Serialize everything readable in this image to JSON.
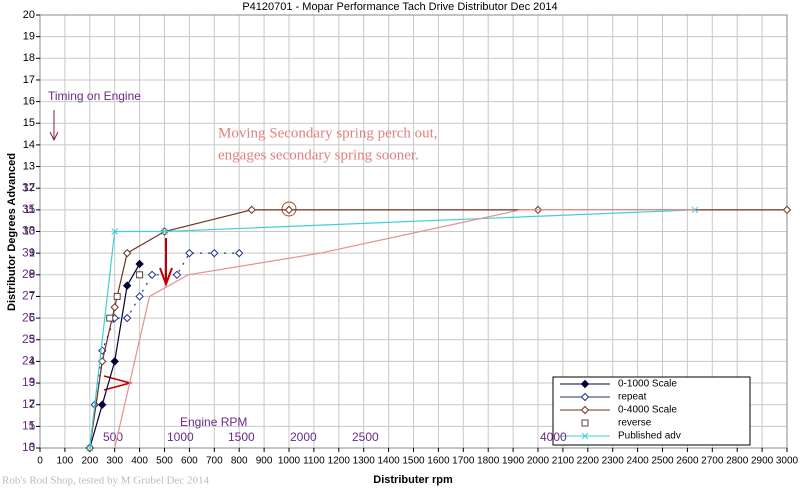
{
  "chart_data": {
    "type": "line",
    "title": "P4120701 - Mopar Performance Tach Drive Distributor Dec 2014",
    "xlabel": "Distributer rpm",
    "ylabel": "Distributor Degrees Advanced",
    "xlim": [
      0,
      3000
    ],
    "ylim": [
      0,
      20
    ],
    "xticks": [
      0,
      100,
      200,
      300,
      400,
      500,
      600,
      700,
      800,
      900,
      1000,
      1100,
      1200,
      1300,
      1400,
      1500,
      1600,
      1700,
      1800,
      1900,
      2000,
      2100,
      2200,
      2300,
      2400,
      2500,
      2600,
      2700,
      2800,
      2900,
      3000
    ],
    "yticks": [
      0,
      1,
      2,
      3,
      4,
      5,
      6,
      7,
      8,
      9,
      10,
      11,
      12,
      13,
      14,
      15,
      16,
      17,
      18,
      19,
      20
    ],
    "grid": true,
    "legend": "lower right",
    "series": [
      {
        "name": "0-1000 Scale",
        "color": "#000033",
        "marker": "diamond-filled",
        "x": [
          200,
          250,
          300,
          350,
          400
        ],
        "values": [
          0,
          2,
          4,
          7.5,
          8.5
        ]
      },
      {
        "name": "repeat",
        "color": "#203080",
        "marker": "diamond",
        "dash": true,
        "x": [
          200,
          220,
          250,
          300,
          350,
          400,
          450,
          550,
          600,
          700,
          800
        ],
        "values": [
          0,
          2,
          4.5,
          6,
          6,
          7,
          8,
          8,
          9,
          9,
          9
        ]
      },
      {
        "name": "0-4000 Scale",
        "color": "#703020",
        "marker": "diamond",
        "x": [
          200,
          250,
          300,
          350,
          500,
          850,
          1000,
          2000,
          3000
        ],
        "values": [
          0,
          4,
          6.5,
          9,
          10,
          11,
          11,
          11,
          11
        ]
      },
      {
        "name": "reverse",
        "color": "#604040",
        "marker": "square",
        "line": false,
        "x": [
          280,
          310,
          400
        ],
        "values": [
          6,
          7,
          8
        ]
      },
      {
        "name": "Published adv",
        "color": "#40d0d8",
        "marker": "x",
        "x": [
          200,
          300,
          500,
          2630
        ],
        "values": [
          0,
          10,
          10,
          11
        ]
      },
      {
        "color": "#e89090",
        "marker": "none",
        "x": [
          300,
          440,
          595,
          1125,
          1930,
          2630
        ],
        "values": [
          0,
          7,
          8,
          9,
          11,
          11
        ]
      }
    ],
    "secondary_y_labels": [
      {
        "value": 0,
        "label": "13"
      },
      {
        "value": 1,
        "label": "15"
      },
      {
        "value": 2,
        "label": "17"
      },
      {
        "value": 3,
        "label": "19"
      },
      {
        "value": 4,
        "label": "21"
      },
      {
        "value": 5,
        "label": "23"
      },
      {
        "value": 6,
        "label": "25"
      },
      {
        "value": 7,
        "label": "27"
      },
      {
        "value": 8,
        "label": "29"
      },
      {
        "value": 9,
        "label": "31"
      },
      {
        "value": 10,
        "label": "33"
      },
      {
        "value": 11,
        "label": "35"
      },
      {
        "value": 12,
        "label": "37"
      }
    ],
    "engine_rpm_title": "Engine RPM",
    "engine_rpm_labels": [
      {
        "value": 253,
        "label": "500"
      },
      {
        "value": 510,
        "label": "1000"
      },
      {
        "value": 755,
        "label": "1500"
      },
      {
        "value": 1004,
        "label": "2000"
      },
      {
        "value": 1253,
        "label": "2500"
      },
      {
        "value": 2008,
        "label": "4000"
      }
    ],
    "annotations": [
      "Timing on Engine",
      "Moving Secondary spring perch out,",
      "engages secondary spring sooner."
    ],
    "footer": "Rob's Rod Shop, tested by M Grubel Dec 2014"
  }
}
